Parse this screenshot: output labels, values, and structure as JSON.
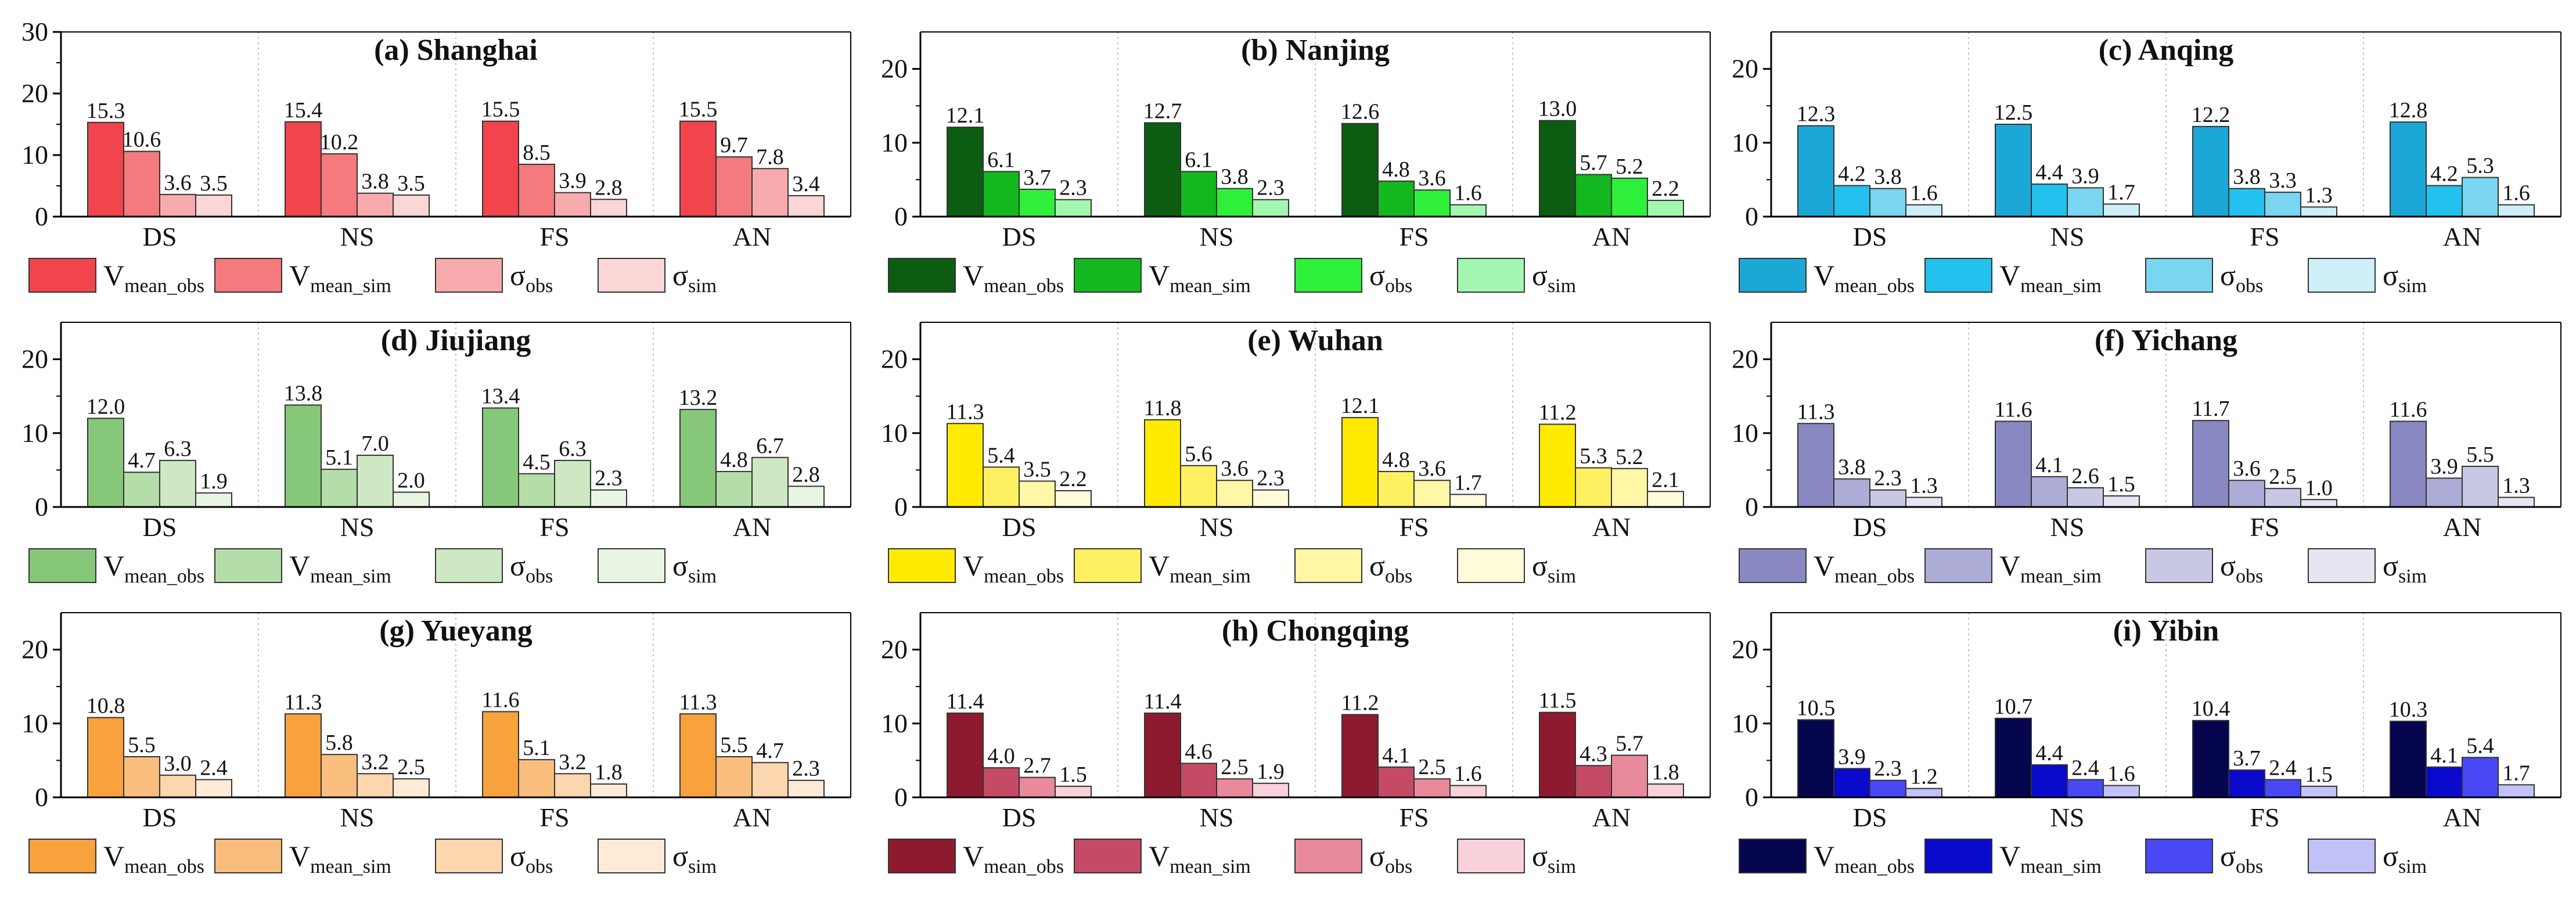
{
  "chart_data": [
    {
      "type": "bar",
      "title": "(a) Shanghai",
      "categories": [
        "DS",
        "NS",
        "FS",
        "AN"
      ],
      "ylim": [
        0,
        30
      ],
      "yticks": [
        0,
        10,
        20,
        30
      ],
      "colors": [
        "#F2444C",
        "#F47A7E",
        "#F7ABAD",
        "#FBD6D7"
      ],
      "series": [
        {
          "name": "V_mean_obs",
          "base": "V",
          "sub": "mean_obs",
          "values": [
            15.3,
            15.4,
            15.5,
            15.5
          ]
        },
        {
          "name": "V_mean_sim",
          "base": "V",
          "sub": "mean_sim",
          "values": [
            10.6,
            10.2,
            8.5,
            9.7
          ]
        },
        {
          "name": "σ_obs",
          "base": "σ",
          "sub": "obs",
          "values": [
            3.6,
            3.8,
            3.9,
            7.8
          ]
        },
        {
          "name": "σ_sim",
          "base": "σ",
          "sub": "sim",
          "values": [
            3.5,
            3.5,
            2.8,
            3.4
          ]
        }
      ]
    },
    {
      "type": "bar",
      "title": "(b) Nanjing",
      "categories": [
        "DS",
        "NS",
        "FS",
        "AN"
      ],
      "ylim": [
        0,
        25
      ],
      "yticks": [
        0,
        10,
        20
      ],
      "colors": [
        "#0C5C12",
        "#12B81E",
        "#2EF03A",
        "#A3F7B0"
      ],
      "series": [
        {
          "name": "V_mean_obs",
          "base": "V",
          "sub": "mean_obs",
          "values": [
            12.1,
            12.7,
            12.6,
            13.0
          ]
        },
        {
          "name": "V_mean_sim",
          "base": "V",
          "sub": "mean_sim",
          "values": [
            6.1,
            6.1,
            4.8,
            5.7
          ]
        },
        {
          "name": "σ_obs",
          "base": "σ",
          "sub": "obs",
          "values": [
            3.7,
            3.8,
            3.6,
            5.2
          ]
        },
        {
          "name": "σ_sim",
          "base": "σ",
          "sub": "sim",
          "values": [
            2.3,
            2.3,
            1.6,
            2.2
          ]
        }
      ]
    },
    {
      "type": "bar",
      "title": "(c) Anqing",
      "categories": [
        "DS",
        "NS",
        "FS",
        "AN"
      ],
      "ylim": [
        0,
        25
      ],
      "yticks": [
        0,
        10,
        20
      ],
      "colors": [
        "#1CA8D6",
        "#22C1EE",
        "#7AD5F0",
        "#CDEFF8"
      ],
      "series": [
        {
          "name": "V_mean_obs",
          "base": "V",
          "sub": "mean_obs",
          "values": [
            12.3,
            12.5,
            12.2,
            12.8
          ]
        },
        {
          "name": "V_mean_sim",
          "base": "V",
          "sub": "mean_sim",
          "values": [
            4.2,
            4.4,
            3.8,
            4.2
          ]
        },
        {
          "name": "σ_obs",
          "base": "σ",
          "sub": "obs",
          "values": [
            3.8,
            3.9,
            3.3,
            5.3
          ]
        },
        {
          "name": "σ_sim",
          "base": "σ",
          "sub": "sim",
          "values": [
            1.6,
            1.7,
            1.3,
            1.6
          ]
        }
      ]
    },
    {
      "type": "bar",
      "title": "(d) Jiujiang",
      "categories": [
        "DS",
        "NS",
        "FS",
        "AN"
      ],
      "ylim": [
        0,
        25
      ],
      "yticks": [
        0,
        10,
        20
      ],
      "colors": [
        "#86C77A",
        "#B5DDA8",
        "#CDE8C2",
        "#E9F5E3"
      ],
      "series": [
        {
          "name": "V_mean_obs",
          "base": "V",
          "sub": "mean_obs",
          "values": [
            12.0,
            13.8,
            13.4,
            13.2
          ]
        },
        {
          "name": "V_mean_sim",
          "base": "V",
          "sub": "mean_sim",
          "values": [
            4.7,
            5.1,
            4.5,
            4.8
          ]
        },
        {
          "name": "σ_obs",
          "base": "σ",
          "sub": "obs",
          "values": [
            6.3,
            7.0,
            6.3,
            6.7
          ]
        },
        {
          "name": "σ_sim",
          "base": "σ",
          "sub": "sim",
          "values": [
            1.9,
            2.0,
            2.3,
            2.8
          ]
        }
      ]
    },
    {
      "type": "bar",
      "title": "(e) Wuhan",
      "categories": [
        "DS",
        "NS",
        "FS",
        "AN"
      ],
      "ylim": [
        0,
        25
      ],
      "yticks": [
        0,
        10,
        20
      ],
      "colors": [
        "#FFEA00",
        "#FFF061",
        "#FFF6A6",
        "#FFFBDB"
      ],
      "series": [
        {
          "name": "V_mean_obs",
          "base": "V",
          "sub": "mean_obs",
          "values": [
            11.3,
            11.8,
            12.1,
            11.2
          ]
        },
        {
          "name": "V_mean_sim",
          "base": "V",
          "sub": "mean_sim",
          "values": [
            5.4,
            5.6,
            4.8,
            5.3
          ]
        },
        {
          "name": "σ_obs",
          "base": "σ",
          "sub": "obs",
          "values": [
            3.5,
            3.6,
            3.6,
            5.2
          ]
        },
        {
          "name": "σ_sim",
          "base": "σ",
          "sub": "sim",
          "values": [
            2.2,
            2.3,
            1.7,
            2.1
          ]
        }
      ]
    },
    {
      "type": "bar",
      "title": "(f) Yichang",
      "categories": [
        "DS",
        "NS",
        "FS",
        "AN"
      ],
      "ylim": [
        0,
        25
      ],
      "yticks": [
        0,
        10,
        20
      ],
      "colors": [
        "#8A88C2",
        "#ADACD6",
        "#C9C8E4",
        "#E6E5F2"
      ],
      "series": [
        {
          "name": "V_mean_obs",
          "base": "V",
          "sub": "mean_obs",
          "values": [
            11.3,
            11.6,
            11.7,
            11.6
          ]
        },
        {
          "name": "V_mean_sim",
          "base": "V",
          "sub": "mean_sim",
          "values": [
            3.8,
            4.1,
            3.6,
            3.9
          ]
        },
        {
          "name": "σ_obs",
          "base": "σ",
          "sub": "obs",
          "values": [
            2.3,
            2.6,
            2.5,
            5.5
          ]
        },
        {
          "name": "σ_sim",
          "base": "σ",
          "sub": "sim",
          "values": [
            1.3,
            1.5,
            1.0,
            1.3
          ]
        }
      ]
    },
    {
      "type": "bar",
      "title": "(g) Yueyang",
      "categories": [
        "DS",
        "NS",
        "FS",
        "AN"
      ],
      "ylim": [
        0,
        25
      ],
      "yticks": [
        0,
        10,
        20
      ],
      "colors": [
        "#F7A23C",
        "#F9BE7E",
        "#FBD6AE",
        "#FDEBD8"
      ],
      "series": [
        {
          "name": "V_mean_obs",
          "base": "V",
          "sub": "mean_obs",
          "values": [
            10.8,
            11.3,
            11.6,
            11.3
          ]
        },
        {
          "name": "V_mean_sim",
          "base": "V",
          "sub": "mean_sim",
          "values": [
            5.5,
            5.8,
            5.1,
            5.5
          ]
        },
        {
          "name": "σ_obs",
          "base": "σ",
          "sub": "obs",
          "values": [
            3.0,
            3.2,
            3.2,
            4.7
          ]
        },
        {
          "name": "σ_sim",
          "base": "σ",
          "sub": "sim",
          "values": [
            2.4,
            2.5,
            1.8,
            2.3
          ]
        }
      ]
    },
    {
      "type": "bar",
      "title": "(h) Chongqing",
      "categories": [
        "DS",
        "NS",
        "FS",
        "AN"
      ],
      "ylim": [
        0,
        25
      ],
      "yticks": [
        0,
        10,
        20
      ],
      "colors": [
        "#8E1A30",
        "#C44A66",
        "#E8899C",
        "#F9D1DB"
      ],
      "series": [
        {
          "name": "V_mean_obs",
          "base": "V",
          "sub": "mean_obs",
          "values": [
            11.4,
            11.4,
            11.2,
            11.5
          ]
        },
        {
          "name": "V_mean_sim",
          "base": "V",
          "sub": "mean_sim",
          "values": [
            4.0,
            4.6,
            4.1,
            4.3
          ]
        },
        {
          "name": "σ_obs",
          "base": "σ",
          "sub": "obs",
          "values": [
            2.7,
            2.5,
            2.5,
            5.7
          ]
        },
        {
          "name": "σ_sim",
          "base": "σ",
          "sub": "sim",
          "values": [
            1.5,
            1.9,
            1.6,
            1.8
          ]
        }
      ]
    },
    {
      "type": "bar",
      "title": "(i) Yibin",
      "categories": [
        "DS",
        "NS",
        "FS",
        "AN"
      ],
      "ylim": [
        0,
        25
      ],
      "yticks": [
        0,
        10,
        20
      ],
      "colors": [
        "#06064F",
        "#0A0ACC",
        "#4848F5",
        "#C2C2F9"
      ],
      "series": [
        {
          "name": "V_mean_obs",
          "base": "V",
          "sub": "mean_obs",
          "values": [
            10.5,
            10.7,
            10.4,
            10.3
          ]
        },
        {
          "name": "V_mean_sim",
          "base": "V",
          "sub": "mean_sim",
          "values": [
            3.9,
            4.4,
            3.7,
            4.1
          ]
        },
        {
          "name": "σ_obs",
          "base": "σ",
          "sub": "obs",
          "values": [
            2.3,
            2.4,
            2.4,
            5.4
          ]
        },
        {
          "name": "σ_sim",
          "base": "σ",
          "sub": "sim",
          "values": [
            1.2,
            1.6,
            1.5,
            1.7
          ]
        }
      ]
    }
  ]
}
